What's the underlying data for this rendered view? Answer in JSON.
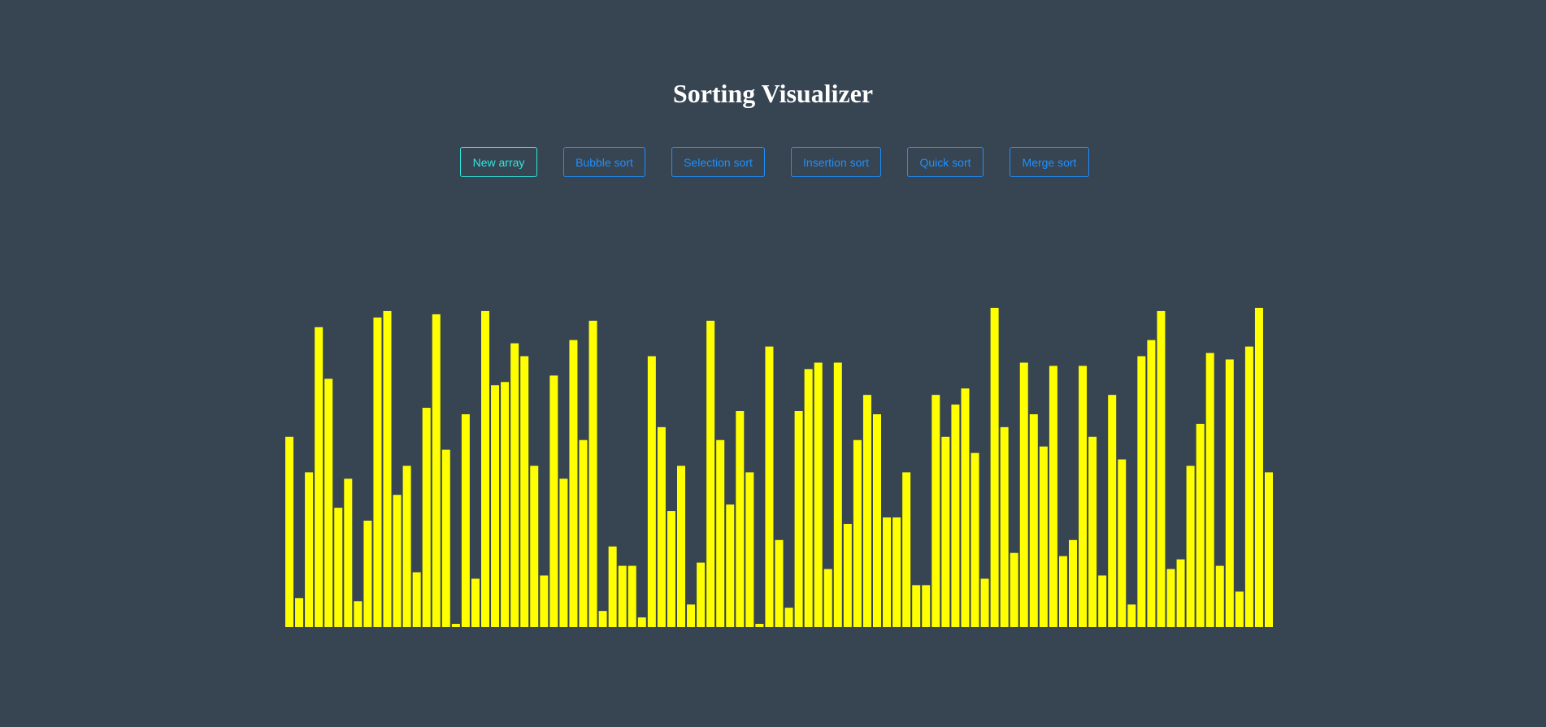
{
  "app": {
    "title": "Sorting Visualizer"
  },
  "toolbar": {
    "buttons": [
      {
        "label": "New array"
      },
      {
        "label": "Bubble sort"
      },
      {
        "label": "Selection sort"
      },
      {
        "label": "Insertion sort"
      },
      {
        "label": "Quick sort"
      },
      {
        "label": "Merge sort"
      }
    ]
  },
  "colors": {
    "background": "#374451",
    "bar": "#ffff00",
    "bar_border": "#374451",
    "primary_button": "#2ee8e0",
    "button": "#1e90ff",
    "title": "#ffffff"
  },
  "chart_data": {
    "type": "bar",
    "values": [
      59,
      9,
      48,
      93,
      77,
      37,
      46,
      8,
      33,
      96,
      98,
      41,
      50,
      17,
      68,
      97,
      55,
      1,
      66,
      15,
      98,
      75,
      76,
      88,
      84,
      50,
      16,
      78,
      46,
      89,
      58,
      95,
      5,
      25,
      19,
      19,
      3,
      84,
      62,
      36,
      50,
      7,
      20,
      95,
      58,
      38,
      67,
      48,
      1,
      87,
      27,
      6,
      67,
      80,
      82,
      18,
      82,
      32,
      58,
      72,
      66,
      34,
      34,
      48,
      13,
      13,
      72,
      59,
      69,
      74,
      54,
      15,
      99,
      62,
      23,
      82,
      66,
      56,
      81,
      22,
      27,
      81,
      59,
      16,
      72,
      52,
      7,
      84,
      89,
      98,
      18,
      21,
      50,
      63,
      85,
      19,
      83,
      11,
      87,
      99,
      48
    ],
    "ylim": [
      0,
      100
    ],
    "grid": false,
    "legend": "none"
  }
}
